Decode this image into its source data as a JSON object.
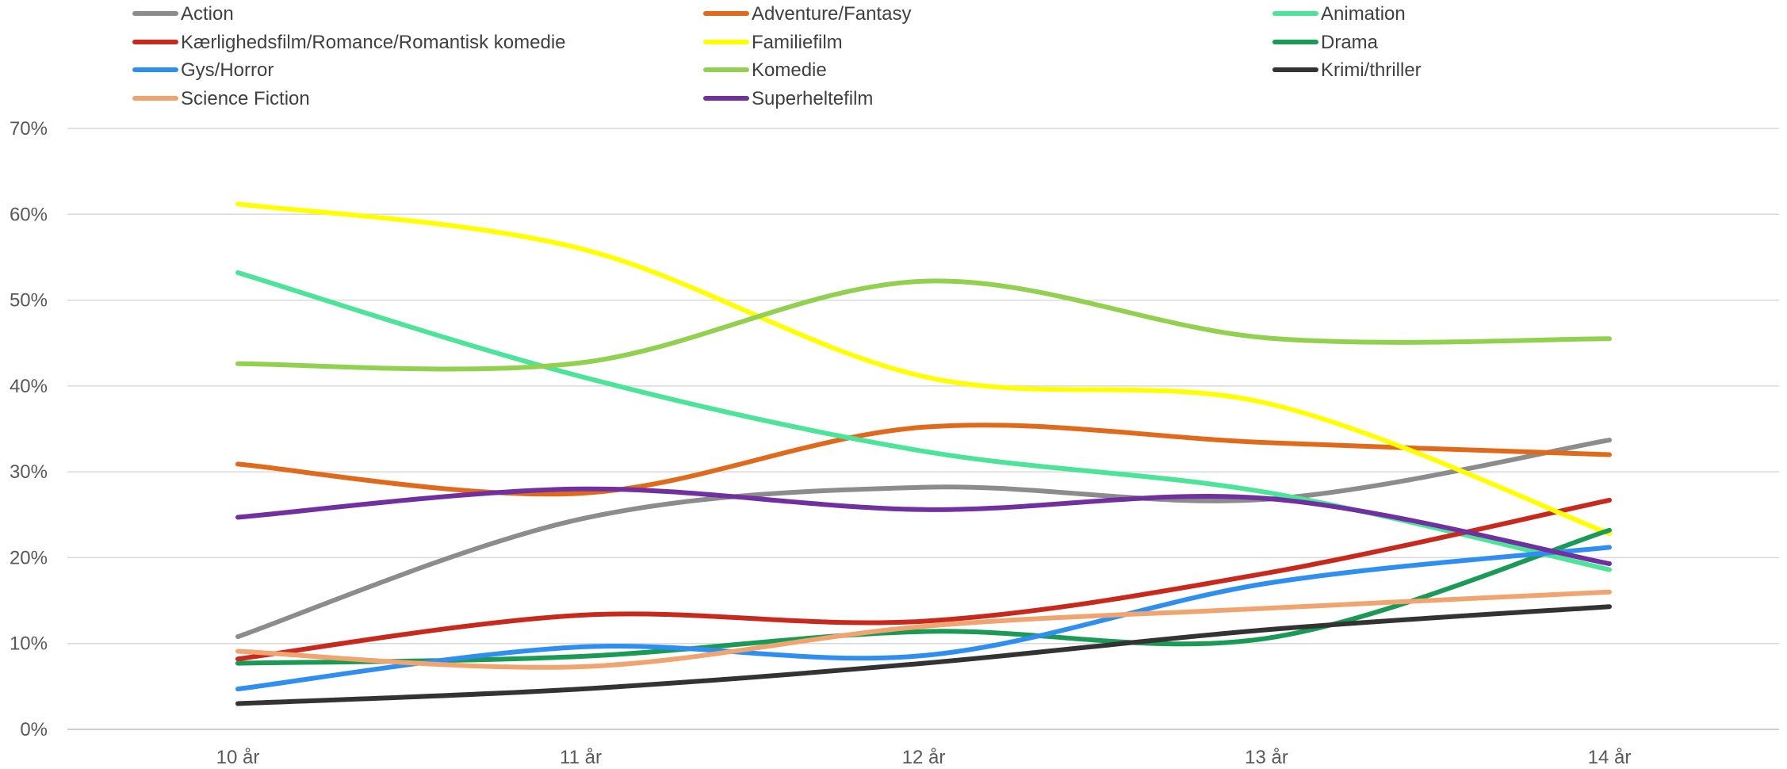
{
  "chart_data": {
    "type": "line",
    "title": "",
    "xlabel": "",
    "ylabel": "",
    "categories": [
      "10 år",
      "11 år",
      "12 år",
      "13 år",
      "14 år"
    ],
    "ylim": [
      0,
      70
    ],
    "yticks": [
      0,
      10,
      20,
      30,
      40,
      50,
      60,
      70
    ],
    "ytick_labels": [
      "0%",
      "10%",
      "20%",
      "30%",
      "40%",
      "50%",
      "60%",
      "70%"
    ],
    "y_unit": "%",
    "grid": "horizontal",
    "legend_position": "top",
    "smooth_lines": true,
    "series": [
      {
        "name": "Action",
        "color": "#8c8c8c",
        "values": [
          10.8,
          24.5,
          28.2,
          26.8,
          33.7
        ]
      },
      {
        "name": "Adventure/Fantasy",
        "color": "#e06a1b",
        "values": [
          30.9,
          27.5,
          35.2,
          33.4,
          32.0
        ]
      },
      {
        "name": "Animation",
        "color": "#4ce498",
        "values": [
          53.2,
          41.1,
          32.4,
          27.6,
          18.6
        ]
      },
      {
        "name": "Kærlighedsfilm/Romance/Romantisk komedie",
        "color": "#c8291d",
        "values": [
          8.2,
          13.3,
          12.6,
          18.2,
          26.7
        ]
      },
      {
        "name": "Familiefilm",
        "color": "#ffff00",
        "values": [
          61.2,
          56.0,
          41.1,
          38.0,
          22.8
        ]
      },
      {
        "name": "Drama",
        "color": "#1a9a55",
        "values": [
          7.7,
          8.5,
          11.4,
          10.6,
          23.2
        ]
      },
      {
        "name": "Gys/Horror",
        "color": "#2f8ff0",
        "values": [
          4.7,
          9.6,
          8.6,
          17.0,
          21.2
        ]
      },
      {
        "name": "Komedie",
        "color": "#92d050",
        "values": [
          42.6,
          42.7,
          52.2,
          45.6,
          45.5
        ]
      },
      {
        "name": "Krimi/thriller",
        "color": "#333333",
        "values": [
          3.0,
          4.7,
          7.7,
          11.6,
          14.3
        ]
      },
      {
        "name": "Science Fiction",
        "color": "#f0a470",
        "values": [
          9.1,
          7.3,
          12.0,
          14.1,
          16.0
        ]
      },
      {
        "name": "Superheltefilm",
        "color": "#7030a0",
        "values": [
          24.7,
          28.0,
          25.6,
          26.9,
          19.3
        ]
      }
    ]
  }
}
